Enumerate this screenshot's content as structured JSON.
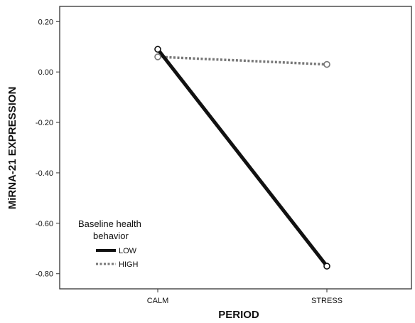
{
  "chart_data": {
    "type": "line",
    "categories": [
      "CALM",
      "STRESS"
    ],
    "series": [
      {
        "name": "LOW",
        "values": [
          0.09,
          -0.77
        ],
        "color": "#111111",
        "style": "solid"
      },
      {
        "name": "HIGH",
        "values": [
          0.06,
          0.03
        ],
        "color": "#777777",
        "style": "dotted"
      }
    ],
    "xlabel": "PERIOD",
    "ylabel": "MiRNA-21 EXPRESSION",
    "ylim": [
      -0.86,
      0.26
    ],
    "yticks": [
      "0.20",
      "0.00",
      "-0.20",
      "-0.40",
      "-0.60",
      "-0.80"
    ],
    "ytick_values": [
      0.2,
      0.0,
      -0.2,
      -0.4,
      -0.6,
      -0.8
    ],
    "legend": {
      "title_lines": [
        "Baseline health",
        "behavior"
      ],
      "placement": "bottom-left"
    },
    "grid": false
  }
}
